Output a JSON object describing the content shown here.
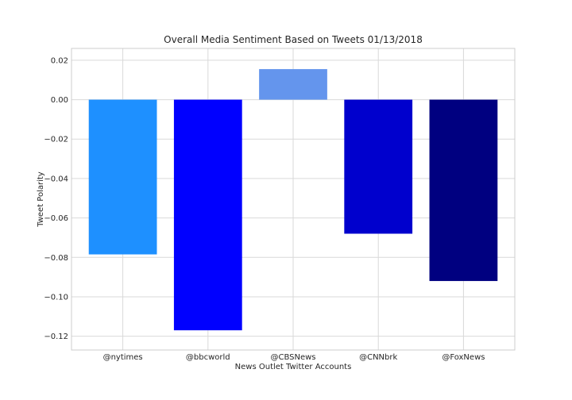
{
  "chart_data": {
    "type": "bar",
    "title": "Overall Media Sentiment Based on Tweets  01/13/2018",
    "xlabel": "News Outlet Twitter Accounts",
    "ylabel": "Tweet Polarity",
    "categories": [
      "@nytimes",
      "@bbcworld",
      "@CBSNews",
      "@CNNbrk",
      "@FoxNews"
    ],
    "values": [
      -0.0785,
      -0.117,
      0.0155,
      -0.068,
      -0.092
    ],
    "colors": [
      "#1e90ff",
      "#0000ff",
      "#6495ed",
      "#0000cd",
      "#000080"
    ],
    "ylim": [
      -0.127,
      0.026
    ],
    "yticks": [
      0.02,
      0.0,
      -0.02,
      -0.04,
      -0.06,
      -0.08,
      -0.1,
      -0.12
    ],
    "ytick_labels": [
      "0.02",
      "0.00",
      "−0.02",
      "−0.04",
      "−0.06",
      "−0.08",
      "−0.10",
      "−0.12"
    ],
    "grid": true
  }
}
